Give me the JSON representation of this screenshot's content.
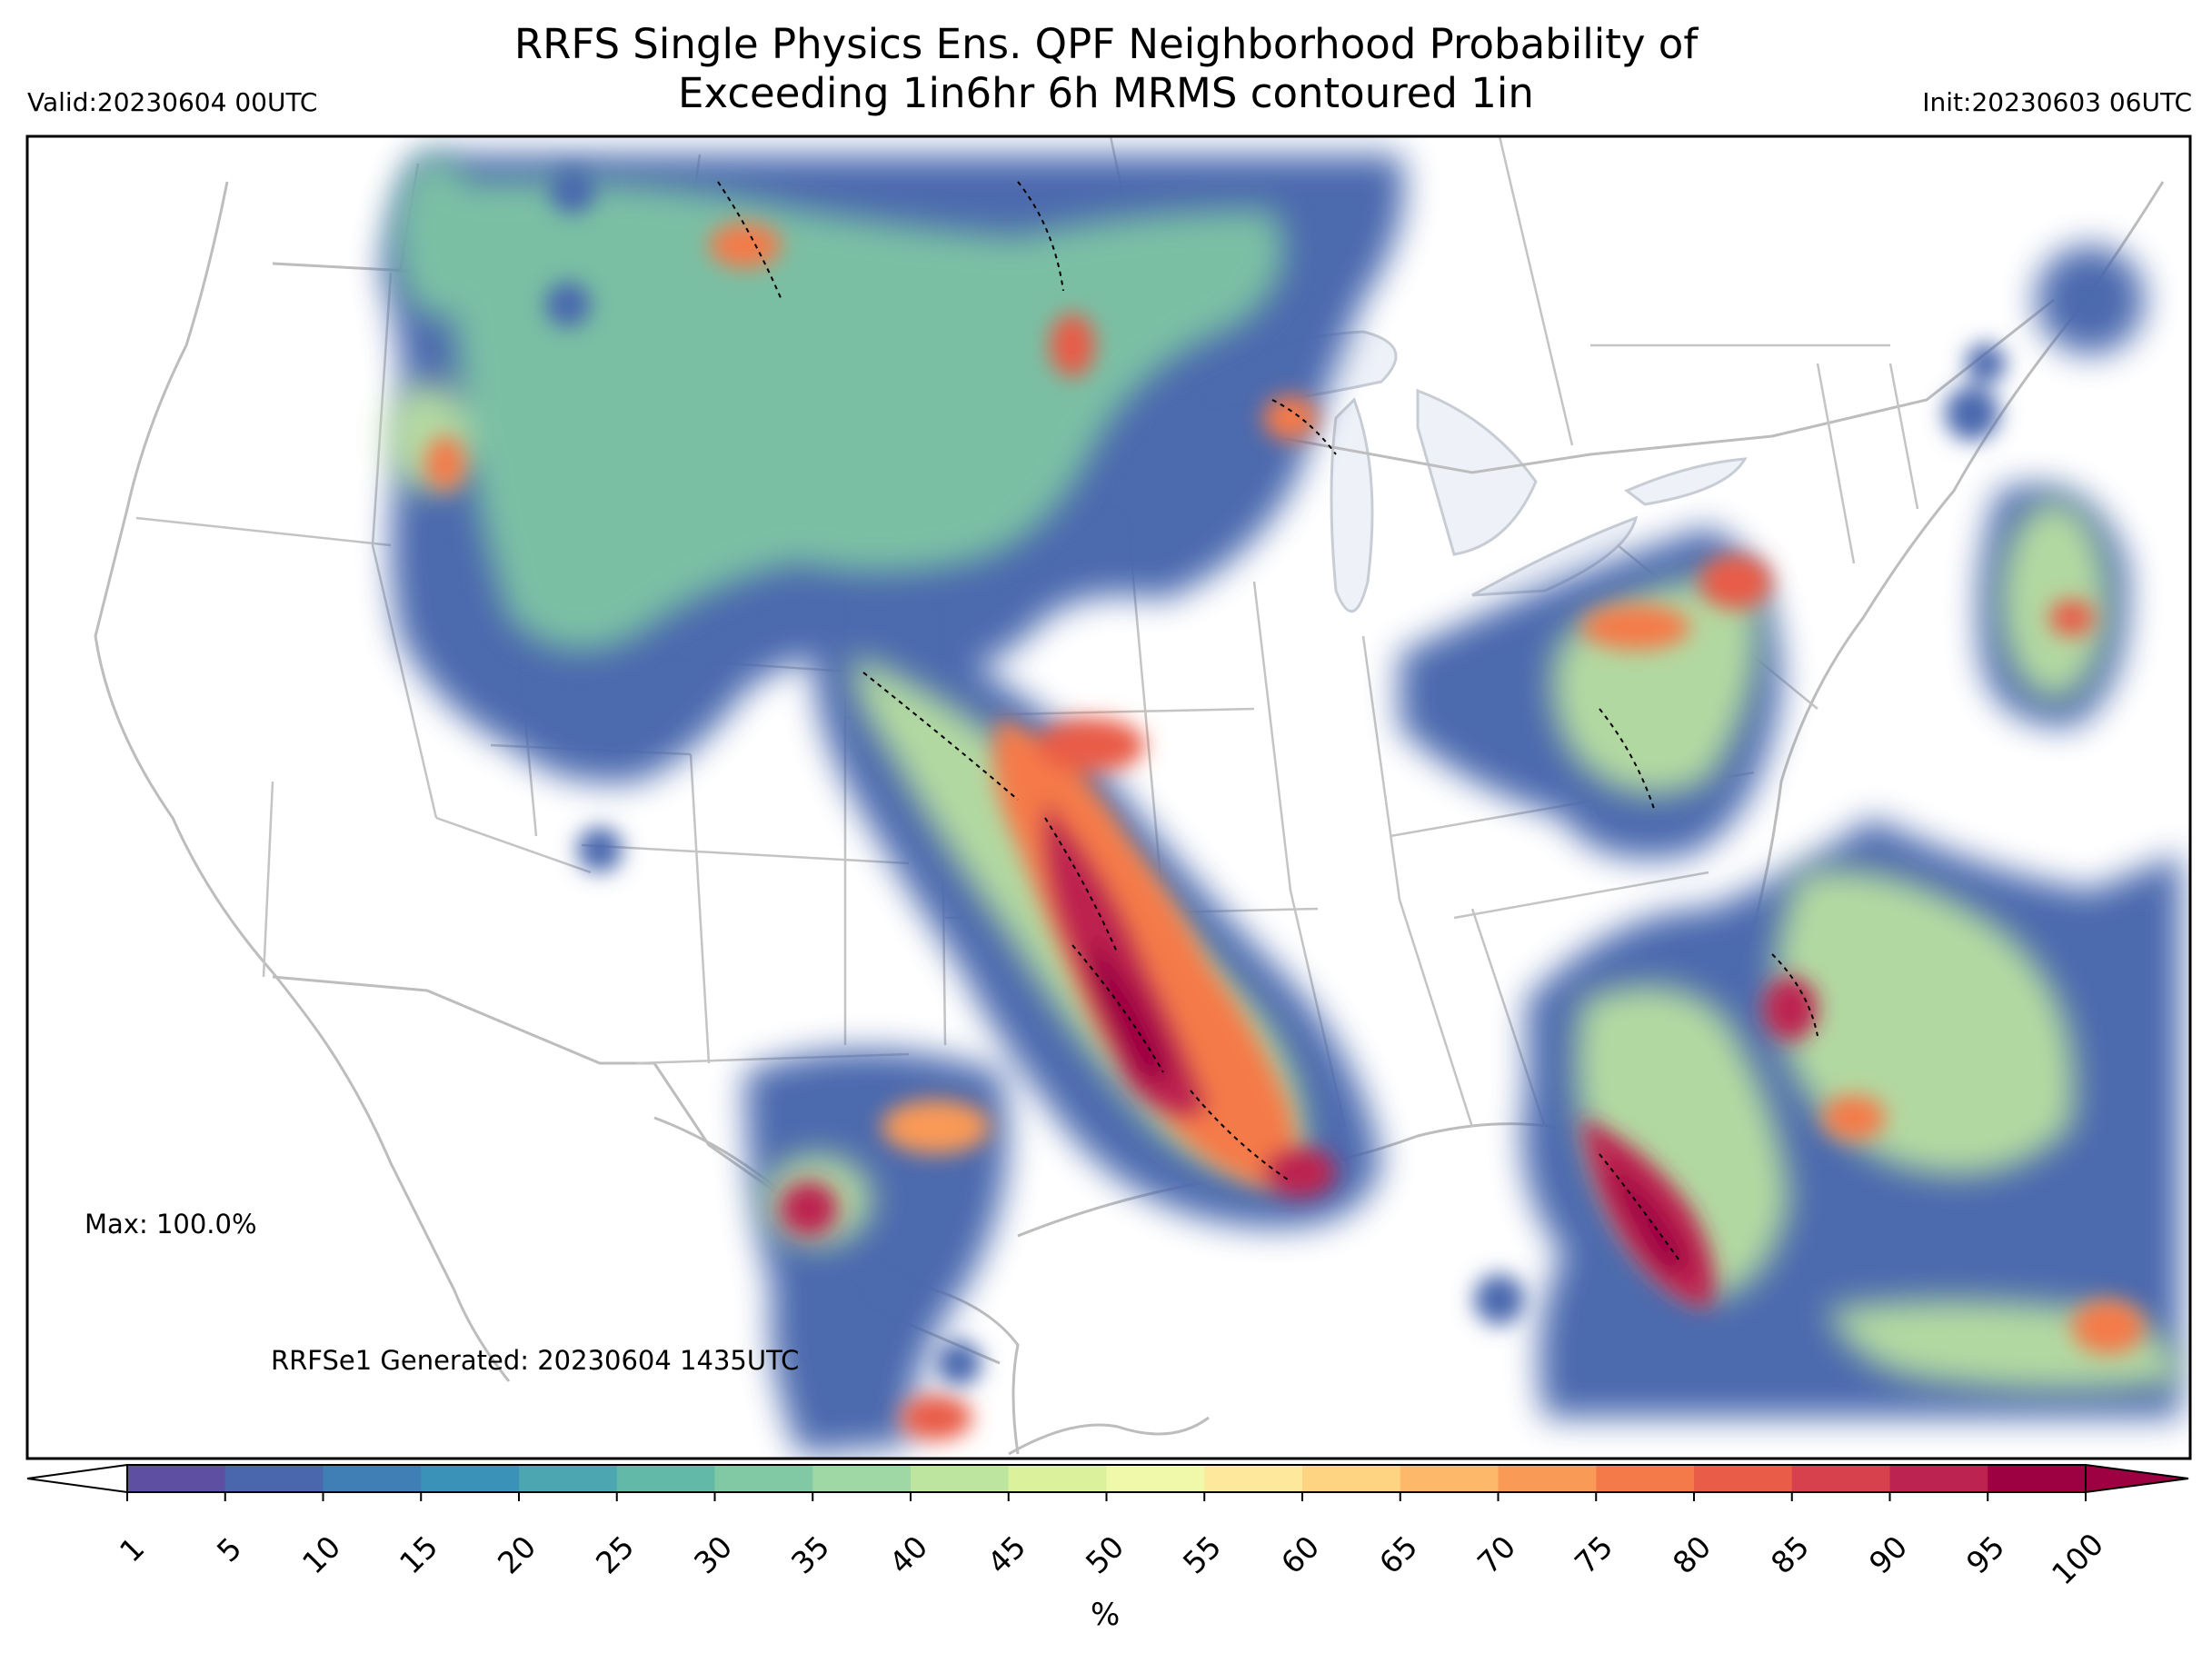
{
  "header": {
    "title_line1": "RRFS Single Physics Ens. QPF Neighborhood Probability of",
    "title_line2": "Exceeding 1in6hr 6h MRMS contoured 1in",
    "valid": "Valid:20230604 00UTC",
    "init": "Init:20230603 06UTC"
  },
  "annotations": {
    "max": "Max: 100.0%",
    "generated": "RRFSe1 Generated: 20230604 1435UTC"
  },
  "colorbar": {
    "unit": "%",
    "levels": [
      "1",
      "5",
      "10",
      "15",
      "20",
      "25",
      "30",
      "35",
      "40",
      "45",
      "50",
      "55",
      "60",
      "65",
      "70",
      "75",
      "80",
      "85",
      "90",
      "95",
      "100"
    ],
    "colors": [
      "#5e4fa2",
      "#4a67ad",
      "#3f7fb6",
      "#3b92b8",
      "#4ba6b2",
      "#62b9a8",
      "#80c9a4",
      "#9fd8a4",
      "#bee5a0",
      "#dbf19c",
      "#f0f8a9",
      "#fee89b",
      "#fed381",
      "#fdb86a",
      "#fa9a57",
      "#f57a4a",
      "#e95c47",
      "#d7414e",
      "#bd2350",
      "#9e0142"
    ]
  },
  "map": {
    "region": "CONUS",
    "basemap_color": "#bdbdbd",
    "lake_fill": "#eef2f8"
  }
}
